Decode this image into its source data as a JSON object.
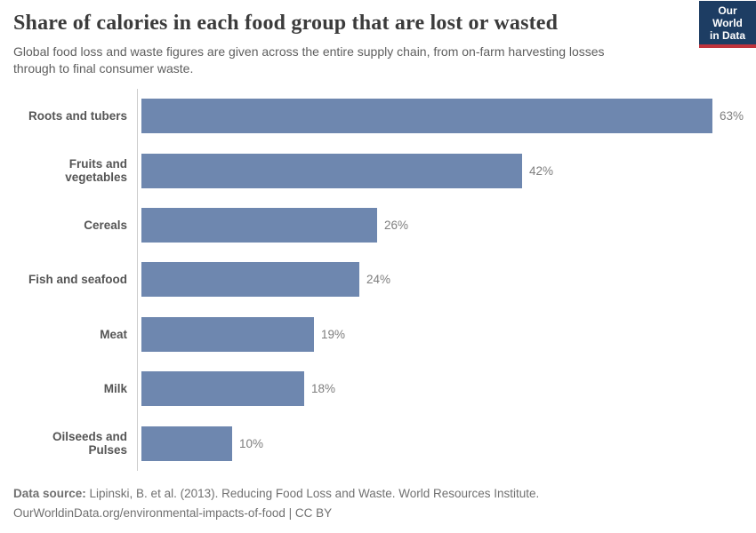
{
  "header": {
    "title": "Share of calories in each food group that are lost or wasted",
    "subtitle": "Global food loss and waste figures are given across the entire supply chain, from on-farm harvesting losses through to final consumer waste.",
    "logo_line1": "Our World",
    "logo_line2": "in Data"
  },
  "chart_data": {
    "type": "bar",
    "orientation": "horizontal",
    "title": "Share of calories in each food group that are lost or wasted",
    "categories": [
      "Roots and tubers",
      "Fruits and vegetables",
      "Cereals",
      "Fish and seafood",
      "Meat",
      "Milk",
      "Oilseeds and Pulses"
    ],
    "values": [
      63,
      42,
      26,
      24,
      19,
      18,
      10
    ],
    "value_labels": [
      "63%",
      "42%",
      "26%",
      "24%",
      "19%",
      "18%",
      "10%"
    ],
    "unit": "%",
    "xlim": [
      0,
      63
    ],
    "grid": false,
    "legend": "none",
    "bar_color": "#6e87af"
  },
  "footer": {
    "source_bold": "Data source:",
    "source_rest": " Lipinski, B. et al. (2013). Reducing Food Loss and Waste. World Resources Institute.",
    "license": "OurWorldinData.org/environmental-impacts-of-food | CC BY"
  },
  "colors": {
    "bar": "#6e87af",
    "axis_line": "#cccccc",
    "title_text": "#3b3b3b",
    "subtitle_text": "#5e5e5e",
    "category_text": "#555555",
    "value_text": "#7e7e7e",
    "footer_text": "#707070",
    "logo_bg": "#1d3d63",
    "logo_stripe": "#c0333c",
    "background": "#ffffff"
  }
}
